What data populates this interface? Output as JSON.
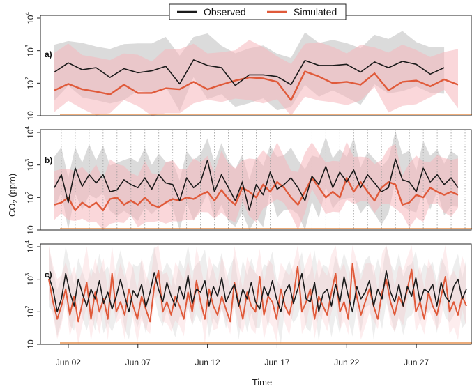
{
  "chart_data": {
    "type": "line",
    "xlabel": "Time",
    "ylabel_main": "CO",
    "ylabel_sub": "2",
    "ylabel_unit": " (ppm)",
    "y_scale": "log",
    "ylim": [
      10,
      10000
    ],
    "ytick_labels": [
      {
        "base": "10",
        "exp": "",
        "value": 10
      },
      {
        "base": "10",
        "exp": "2",
        "value": 100
      },
      {
        "base": "10",
        "exp": "3",
        "value": 1000
      },
      {
        "base": "10",
        "exp": "4",
        "value": 10000
      }
    ],
    "xlim": [
      "2023-05-31",
      "2023-07-01"
    ],
    "x_ticks": [
      {
        "label": "Jun 02",
        "day": 2
      },
      {
        "label": "Jun 07",
        "day": 7
      },
      {
        "label": "Jun 12",
        "day": 12
      },
      {
        "label": "Jun 17",
        "day": 17
      },
      {
        "label": "Jun 22",
        "day": 22
      },
      {
        "label": "Jun 27",
        "day": 27
      }
    ],
    "legend": {
      "placement": "top-center",
      "entries": [
        {
          "name": "Observed",
          "color": "#1a1a1a"
        },
        {
          "name": "Simulated",
          "color": "#e05a3a"
        }
      ]
    },
    "colors": {
      "observed": "#1a1a1a",
      "simulated": "#e05a3a",
      "observed_band": "#bdbdbd",
      "simulated_band": "#f6b6bb",
      "vgrid": "#9a9a9a",
      "baseline": "#e07a2a"
    },
    "panels": [
      {
        "label": "a)",
        "resolution": "daily",
        "observed": {
          "x": [
            "2023-06-01",
            "2023-06-02",
            "2023-06-03",
            "2023-06-04",
            "2023-06-05",
            "2023-06-06",
            "2023-06-07",
            "2023-06-08",
            "2023-06-09",
            "2023-06-10",
            "2023-06-11",
            "2023-06-12",
            "2023-06-13",
            "2023-06-14",
            "2023-06-15",
            "2023-06-16",
            "2023-06-17",
            "2023-06-18",
            "2023-06-19",
            "2023-06-20",
            "2023-06-21",
            "2023-06-22",
            "2023-06-23",
            "2023-06-24",
            "2023-06-25",
            "2023-06-26",
            "2023-06-27",
            "2023-06-28",
            "2023-06-29"
          ],
          "y": [
            220,
            420,
            260,
            300,
            150,
            280,
            210,
            240,
            330,
            95,
            520,
            350,
            300,
            85,
            180,
            180,
            160,
            90,
            500,
            350,
            350,
            380,
            220,
            450,
            300,
            470,
            380,
            190,
            300
          ]
        },
        "simulated": {
          "x": [
            "2023-06-01",
            "2023-06-02",
            "2023-06-03",
            "2023-06-04",
            "2023-06-05",
            "2023-06-06",
            "2023-06-07",
            "2023-06-08",
            "2023-06-09",
            "2023-06-10",
            "2023-06-11",
            "2023-06-12",
            "2023-06-13",
            "2023-06-14",
            "2023-06-15",
            "2023-06-16",
            "2023-06-17",
            "2023-06-18",
            "2023-06-19",
            "2023-06-20",
            "2023-06-21",
            "2023-06-22",
            "2023-06-23",
            "2023-06-24",
            "2023-06-25",
            "2023-06-26",
            "2023-06-27",
            "2023-06-28",
            "2023-06-29",
            "2023-06-30"
          ],
          "y": [
            60,
            95,
            65,
            55,
            45,
            90,
            50,
            50,
            70,
            65,
            110,
            65,
            90,
            120,
            150,
            140,
            110,
            30,
            230,
            160,
            100,
            110,
            90,
            200,
            60,
            110,
            120,
            80,
            130,
            90
          ]
        }
      },
      {
        "label": "b)",
        "resolution": "twice daily",
        "observed": {
          "x": [
            1,
            1.5,
            2,
            2.5,
            3,
            3.5,
            4,
            4.5,
            5,
            5.5,
            6,
            6.5,
            7,
            7.5,
            8,
            8.5,
            9,
            9.5,
            10,
            10.5,
            11,
            11.5,
            12,
            12.5,
            13,
            13.5,
            14,
            14.5,
            15,
            15.5,
            16,
            16.5,
            17,
            17.5,
            18,
            18.5,
            19,
            19.5,
            20,
            20.5,
            21,
            21.5,
            22,
            22.5,
            23,
            23.5,
            24,
            24.5,
            25,
            25.5,
            26,
            26.5,
            27,
            27.5,
            28,
            28.5,
            29,
            29.5,
            30
          ],
          "y": [
            200,
            500,
            70,
            800,
            220,
            500,
            280,
            500,
            150,
            170,
            350,
            250,
            200,
            400,
            180,
            500,
            280,
            250,
            80,
            400,
            200,
            300,
            1400,
            150,
            500,
            200,
            80,
            300,
            40,
            250,
            120,
            600,
            180,
            250,
            400,
            200,
            80,
            450,
            250,
            900,
            200,
            600,
            300,
            700,
            200,
            500,
            280,
            150,
            200,
            1500,
            350,
            300,
            150,
            800,
            300,
            500,
            250,
            400,
            200
          ]
        },
        "simulated": {
          "x": [
            1,
            1.5,
            2,
            2.5,
            3,
            3.5,
            4,
            4.5,
            5,
            5.5,
            6,
            6.5,
            7,
            7.5,
            8,
            8.5,
            9,
            9.5,
            10,
            10.5,
            11,
            11.5,
            12,
            12.5,
            13,
            13.5,
            14,
            14.5,
            15,
            15.5,
            16,
            16.5,
            17,
            17.5,
            18,
            18.5,
            19,
            19.5,
            20,
            20.5,
            21,
            21.5,
            22,
            22.5,
            23,
            23.5,
            24,
            24.5,
            25,
            25.5,
            26,
            26.5,
            27,
            27.5,
            28,
            28.5,
            29,
            29.5,
            30
          ],
          "y": [
            60,
            70,
            100,
            40,
            70,
            50,
            70,
            40,
            90,
            100,
            60,
            80,
            60,
            100,
            60,
            50,
            70,
            90,
            80,
            100,
            90,
            120,
            150,
            80,
            170,
            90,
            60,
            200,
            150,
            100,
            250,
            150,
            300,
            200,
            100,
            60,
            150,
            400,
            200,
            100,
            150,
            100,
            400,
            150,
            300,
            150,
            80,
            200,
            300,
            250,
            60,
            70,
            120,
            100,
            200,
            150,
            120,
            150,
            120
          ]
        }
      },
      {
        "label": "c)",
        "resolution": "hourly",
        "observed": {
          "y": [
            1200,
            500,
            100,
            250,
            1500,
            400,
            150,
            1000,
            350,
            150,
            500,
            250,
            900,
            180,
            400,
            120,
            300,
            1000,
            300,
            100,
            450,
            280,
            700,
            140,
            400,
            1600,
            500,
            200,
            800,
            300,
            150,
            600,
            250,
            1300,
            180,
            500,
            400,
            900,
            150,
            600,
            300,
            1100,
            200,
            400,
            700,
            150,
            500,
            250,
            800,
            200,
            120,
            600,
            300,
            900,
            250,
            100,
            400,
            700,
            180,
            500,
            1500,
            250,
            200,
            800,
            100,
            350,
            500,
            150,
            700,
            200,
            1200,
            300,
            100,
            600,
            250,
            400,
            900,
            150,
            500,
            250,
            1800,
            400,
            200,
            700,
            150,
            600,
            300,
            1100,
            200,
            500,
            400,
            700,
            150,
            800,
            300,
            200,
            600,
            1000,
            250,
            500
          ]
        },
        "simulated": {
          "y": [
            1000,
            200,
            60,
            150,
            500,
            80,
            300,
            50,
            200,
            800,
            60,
            400,
            100,
            250,
            60,
            1500,
            100,
            200,
            80,
            500,
            150,
            60,
            300,
            120,
            50,
            600,
            1800,
            100,
            200,
            80,
            300,
            150,
            60,
            400,
            100,
            900,
            200,
            60,
            500,
            150,
            80,
            300,
            120,
            50,
            800,
            200,
            60,
            400,
            150,
            100,
            1200,
            80,
            300,
            200,
            60,
            500,
            150,
            80,
            300,
            2500,
            100,
            200,
            500,
            60,
            300,
            150,
            80,
            400,
            1500,
            100,
            200,
            60,
            3000,
            300,
            80,
            200,
            500,
            150,
            60,
            400,
            1000,
            200,
            80,
            300,
            150,
            500,
            2000,
            100,
            200,
            60,
            400,
            150,
            80,
            300,
            1200,
            100,
            200,
            80,
            300,
            150
          ]
        }
      }
    ]
  }
}
